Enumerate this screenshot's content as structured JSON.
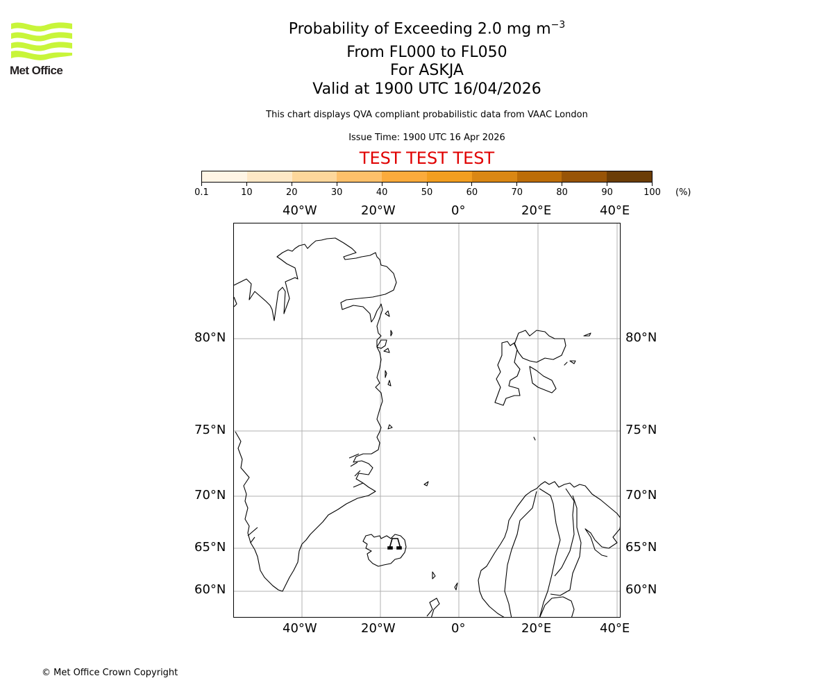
{
  "logo": {
    "text": "Met Office",
    "color": "#c8f53a"
  },
  "title": {
    "line1": "Probability of Exceeding 2.0 mg m",
    "line1_superscript": "−3",
    "line2": "From FL000 to FL050",
    "line3": "For ASKJA",
    "line4": "Valid at 1900 UTC 16/04/2026"
  },
  "subtitle": "This chart displays QVA compliant probabilistic data from VAAC London",
  "issue_time": "Issue Time: 1900 UTC 16 Apr 2026",
  "test_banner": "TEST TEST TEST",
  "colorbar": {
    "unit": "(%)",
    "ticks": [
      "0.1",
      "10",
      "20",
      "30",
      "40",
      "50",
      "60",
      "70",
      "80",
      "90",
      "100"
    ],
    "colors": [
      "#fff5e5",
      "#fee8c6",
      "#fdd79b",
      "#fdc06a",
      "#fbab3c",
      "#f29e20",
      "#da8714",
      "#bc6d08",
      "#985406",
      "#6b3d06"
    ]
  },
  "map": {
    "lon_labels": [
      "40°W",
      "20°W",
      "0°",
      "20°E",
      "40°E"
    ],
    "lat_labels": [
      "80°N",
      "75°N",
      "70°N",
      "65°N",
      "60°N"
    ],
    "volcano_marker": "ASKJA",
    "grid_color": "#b0b0b0"
  },
  "chart_data": {
    "type": "map",
    "title": "Probability of Exceeding 2.0 mg m^-3 From FL000 to FL050 For ASKJA Valid at 1900 UTC 16/04/2026",
    "colorbar": {
      "label": "(%)",
      "bounds": [
        0.1,
        10,
        20,
        30,
        40,
        50,
        60,
        70,
        80,
        90,
        100
      ]
    },
    "extent": {
      "lon": [
        -55,
        40
      ],
      "lat": [
        58,
        85
      ]
    },
    "xticks": [
      "40°W",
      "20°W",
      "0°",
      "20°E",
      "40°E"
    ],
    "yticks": [
      "80°N",
      "75°N",
      "70°N",
      "65°N",
      "60°N"
    ],
    "grid": true,
    "features": [
      "coastlines",
      "borders",
      "volcano marker at Askja, Iceland"
    ],
    "probability_contours": []
  },
  "footer": {
    "copyright": "© Met Office Crown Copyright"
  }
}
